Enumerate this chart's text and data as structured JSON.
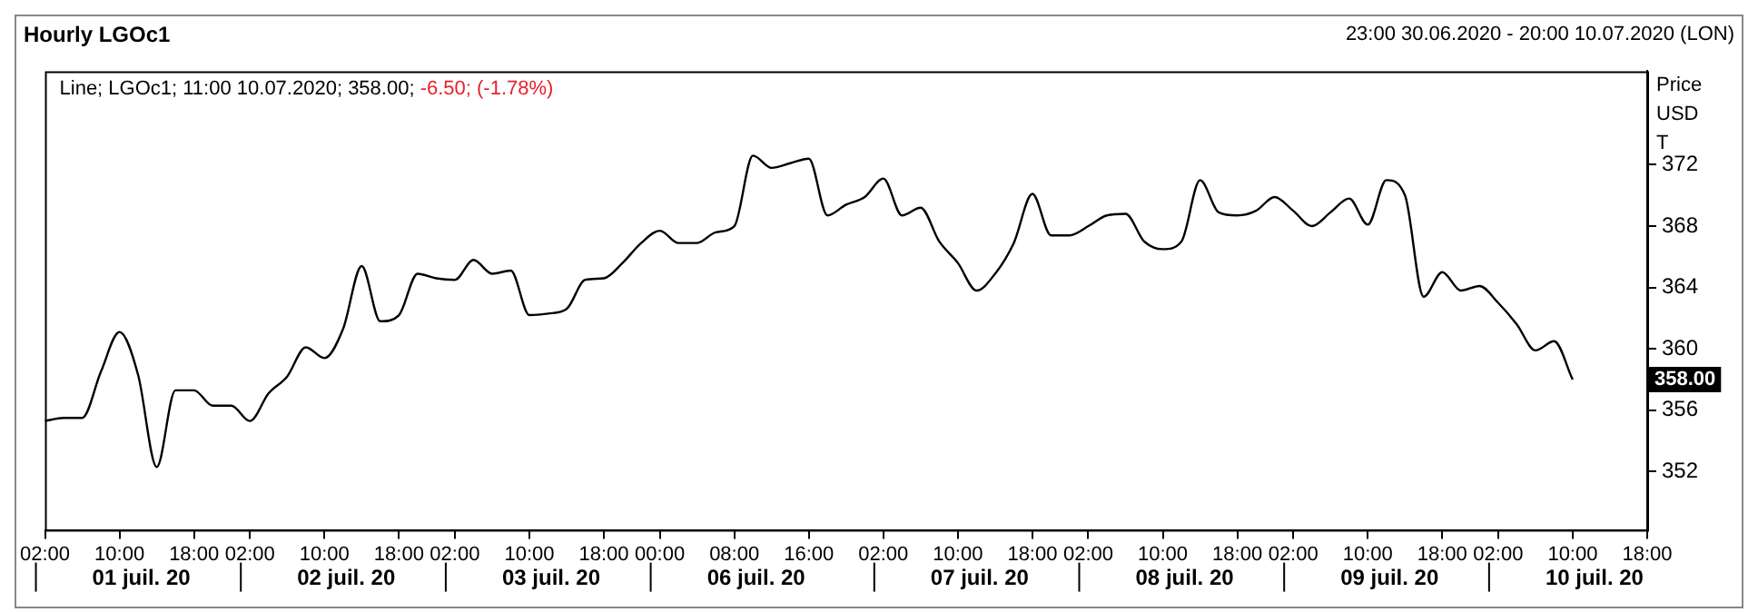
{
  "chart_data": {
    "type": "line",
    "title": "Hourly LGOc1",
    "subtitle": "Line; LGOc1; 11:00 10.07.2020; 358.00; -6.50; (-1.78%)",
    "ylabel": "Price\nUSD\nT",
    "annotations": [
      "23:00 30.06.2020 - 20:00 10.07.2020 (LON)",
      "01 juil. 20",
      "02 juil. 20",
      "03 juil. 20",
      "06 juil. 20",
      "07 juil. 20",
      "08 juil. 20",
      "09 juil. 20",
      "10 juil. 20",
      {
        "text": "358.00",
        "y": 358
      }
    ],
    "categories": [
      "02:00",
      null,
      null,
      null,
      "10:00",
      null,
      null,
      null,
      "18:00",
      null,
      null,
      "02:00",
      null,
      null,
      null,
      "10:00",
      null,
      null,
      null,
      "18:00",
      null,
      null,
      "02:00",
      null,
      null,
      null,
      "10:00",
      null,
      null,
      null,
      "18:00",
      null,
      null,
      "00:00",
      null,
      null,
      null,
      "08:00",
      null,
      null,
      null,
      "16:00",
      null,
      null,
      null,
      "02:00",
      null,
      null,
      null,
      "10:00",
      null,
      null,
      null,
      "18:00",
      null,
      null,
      "02:00",
      null,
      null,
      null,
      "10:00",
      null,
      null,
      null,
      "18:00",
      null,
      null,
      "02:00",
      null,
      null,
      null,
      "10:00",
      null,
      null,
      null,
      "18:00",
      null,
      null,
      "02:00",
      null,
      null,
      null,
      "10:00",
      null,
      null,
      null,
      "18:00"
    ],
    "series": [
      {
        "color": "#000000",
        "values": [
          355.3,
          355.5,
          355.5,
          358.5,
          361.1,
          358.3,
          352.3,
          357.3,
          357.3,
          356.3,
          356.3,
          355.3,
          357.1,
          358.2,
          360.1,
          359.4,
          361.3,
          365.4,
          361.8,
          362.2,
          364.9,
          364.6,
          364.5,
          365.8,
          364.9,
          365.1,
          362.2,
          362.3,
          362.6,
          364.5,
          364.6,
          365.6,
          366.9,
          367.7,
          366.9,
          366.9,
          367.6,
          368.0,
          372.6,
          371.8,
          372.1,
          372.4,
          368.7,
          369.4,
          369.9,
          371.1,
          368.7,
          369.2,
          367.0,
          365.6,
          363.8,
          364.9,
          366.9,
          370.1,
          367.4,
          367.4,
          368.0,
          368.7,
          368.8,
          367.0,
          366.5,
          367.0,
          371.0,
          368.9,
          368.7,
          369.0,
          369.9,
          369.0,
          368.0,
          368.9,
          369.8,
          368.1,
          371.0,
          370.0,
          363.4,
          365.0,
          363.8,
          364.1,
          363.0,
          361.6,
          359.9,
          360.5,
          358.0,
          null,
          null,
          null,
          null
        ]
      }
    ],
    "ylim": [
      348.2,
      378.1
    ],
    "yticks": [
      352,
      356,
      360,
      364,
      368,
      372
    ],
    "grid": false,
    "legend": false,
    "marker": "none",
    "line_style": "solid"
  }
}
